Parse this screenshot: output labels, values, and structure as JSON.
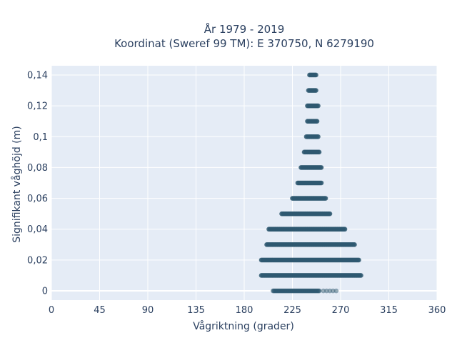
{
  "chart_data": {
    "type": "scatter",
    "title": "År 1979 - 2019",
    "subtitle": "Koordinat (Sweref 99 TM): E 370750, N 6279190",
    "xlabel": "Vågriktning (grader)",
    "ylabel": "Signifikant våghöjd (m)",
    "xlim": [
      0,
      360
    ],
    "ylim": [
      -0.006,
      0.146
    ],
    "xticks": [
      0,
      45,
      90,
      135,
      180,
      225,
      270,
      315,
      360
    ],
    "xtick_labels": [
      "0",
      "45",
      "90",
      "135",
      "180",
      "225",
      "270",
      "315",
      "360"
    ],
    "yticks": [
      0,
      0.02,
      0.04,
      0.06,
      0.08,
      0.1,
      0.12,
      0.14
    ],
    "ytick_labels": [
      "0",
      "0,02",
      "0,04",
      "0,06",
      "0,08",
      "0,1",
      "0,12",
      "0,14"
    ],
    "grid": true,
    "background": "#e5ecf6",
    "marker_color": "#2e5870",
    "bands": [
      {
        "y": 0.0,
        "x_min": 207,
        "x_max": 268
      },
      {
        "y": 0.01,
        "x_min": 196,
        "x_max": 289
      },
      {
        "y": 0.02,
        "x_min": 196,
        "x_max": 287
      },
      {
        "y": 0.03,
        "x_min": 201,
        "x_max": 283
      },
      {
        "y": 0.04,
        "x_min": 203,
        "x_max": 274
      },
      {
        "y": 0.05,
        "x_min": 215,
        "x_max": 260
      },
      {
        "y": 0.06,
        "x_min": 225,
        "x_max": 256
      },
      {
        "y": 0.07,
        "x_min": 230,
        "x_max": 252
      },
      {
        "y": 0.08,
        "x_min": 233,
        "x_max": 252
      },
      {
        "y": 0.09,
        "x_min": 236,
        "x_max": 250
      },
      {
        "y": 0.1,
        "x_min": 238,
        "x_max": 249
      },
      {
        "y": 0.11,
        "x_min": 239,
        "x_max": 248
      },
      {
        "y": 0.12,
        "x_min": 239,
        "x_max": 249
      },
      {
        "y": 0.13,
        "x_min": 240,
        "x_max": 247
      },
      {
        "y": 0.14,
        "x_min": 241,
        "x_max": 247
      }
    ]
  }
}
